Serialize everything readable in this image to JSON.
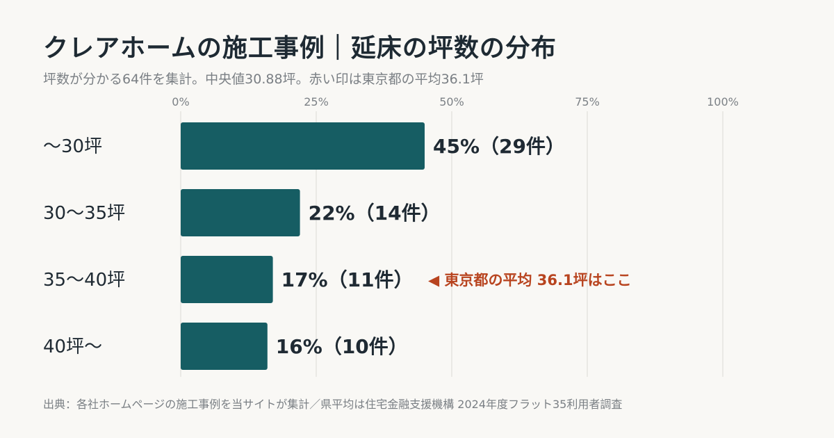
{
  "title": "クレアホームの施工事例｜延床の坪数の分布",
  "subtitle": "坪数が分かる64件を集計。中央値30.88坪。赤い印は東京都の平均36.1坪",
  "footer": "出典：各社ホームページの施工事例を当サイトが集計／県平均は住宅金融支援機構 2024年度フラット35利用者調査",
  "colors": {
    "bar": "#165d63",
    "grid": "#dcdad5",
    "annotation": "#b8441f"
  },
  "chart_data": {
    "type": "bar",
    "orientation": "horizontal",
    "title": "クレアホームの施工事例｜延床の坪数の分布",
    "subtitle": "坪数が分かる64件を集計。中央値30.88坪。赤い印は東京都の平均36.1坪",
    "categories": [
      "〜30坪",
      "30〜35坪",
      "35〜40坪",
      "40坪〜"
    ],
    "values": [
      45,
      22,
      17,
      16
    ],
    "counts": [
      29,
      14,
      11,
      10
    ],
    "value_labels": [
      "45%（29件）",
      "22%（14件）",
      "17%（11件）",
      "16%（10件）"
    ],
    "xlim": [
      0,
      100
    ],
    "ticks": [
      0,
      25,
      50,
      75,
      100
    ],
    "tick_labels": [
      "0%",
      "25%",
      "50%",
      "75%",
      "100%"
    ],
    "tick_position": "top",
    "grid": true,
    "annotation": {
      "category": "35〜40坪",
      "text": "◀ 東京都の平均 36.1坪はここ"
    }
  }
}
